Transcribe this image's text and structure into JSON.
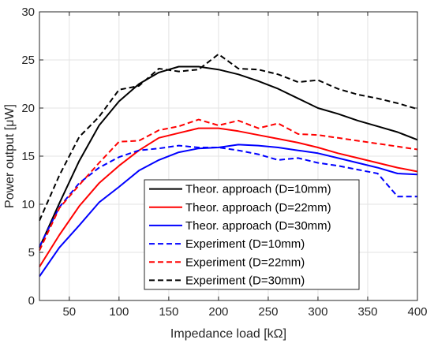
{
  "chart_data": {
    "type": "line",
    "title": "",
    "xlabel": "Impedance load [kΩ]",
    "ylabel": "Power output [μW]",
    "xlim": [
      20,
      400
    ],
    "ylim": [
      0,
      30
    ],
    "grid": true,
    "legend_position": "bottom-right",
    "xticks": [
      50,
      100,
      150,
      200,
      250,
      300,
      350,
      400
    ],
    "yticks": [
      0,
      5,
      10,
      15,
      20,
      25,
      30
    ],
    "series": [
      {
        "name": "Theor. approach (D=10mm)",
        "color": "#000000",
        "dash": "solid",
        "x": [
          20,
          40,
          60,
          80,
          100,
          120,
          140,
          160,
          180,
          200,
          220,
          240,
          260,
          280,
          300,
          320,
          340,
          360,
          380,
          400
        ],
        "y": [
          5.5,
          10.1,
          14.5,
          18.2,
          20.7,
          22.5,
          23.7,
          24.3,
          24.3,
          24.0,
          23.5,
          22.8,
          22.0,
          21.0,
          20.0,
          19.4,
          18.7,
          18.1,
          17.5,
          16.7
        ]
      },
      {
        "name": "Theor. approach (D=22mm)",
        "color": "#ff0000",
        "dash": "solid",
        "x": [
          20,
          40,
          60,
          80,
          100,
          120,
          140,
          160,
          180,
          200,
          220,
          240,
          260,
          280,
          300,
          320,
          340,
          360,
          380,
          400
        ],
        "y": [
          3.5,
          6.8,
          9.8,
          12.2,
          14.0,
          15.6,
          16.9,
          17.4,
          17.9,
          17.9,
          17.6,
          17.2,
          16.8,
          16.4,
          15.9,
          15.3,
          14.8,
          14.3,
          13.8,
          13.4
        ]
      },
      {
        "name": "Theor. approach (D=30mm)",
        "color": "#0000ff",
        "dash": "solid",
        "x": [
          20,
          40,
          60,
          80,
          100,
          120,
          140,
          160,
          180,
          200,
          220,
          240,
          260,
          280,
          300,
          320,
          340,
          360,
          380,
          400
        ],
        "y": [
          2.5,
          5.5,
          7.8,
          10.2,
          11.8,
          13.5,
          14.6,
          15.4,
          15.8,
          15.9,
          16.2,
          16.1,
          15.9,
          15.6,
          15.3,
          14.8,
          14.3,
          13.8,
          13.2,
          13.1
        ]
      },
      {
        "name": "Experiment (D=10mm)",
        "color": "#0000ff",
        "dash": "dashed",
        "x": [
          20,
          40,
          60,
          80,
          100,
          120,
          140,
          160,
          180,
          200,
          220,
          240,
          260,
          280,
          300,
          320,
          340,
          360,
          380,
          400
        ],
        "y": [
          5.6,
          9.7,
          12.2,
          13.8,
          14.9,
          15.6,
          15.8,
          16.1,
          15.9,
          15.9,
          15.6,
          15.2,
          14.6,
          14.8,
          14.3,
          14.0,
          13.6,
          13.2,
          10.8,
          10.8
        ]
      },
      {
        "name": "Experiment (D=22mm)",
        "color": "#ff0000",
        "dash": "dashed",
        "x": [
          20,
          40,
          60,
          80,
          100,
          120,
          140,
          160,
          180,
          200,
          220,
          240,
          260,
          280,
          300,
          320,
          340,
          360,
          380,
          400
        ],
        "y": [
          5.2,
          9.6,
          12.0,
          14.3,
          16.5,
          16.6,
          17.7,
          18.1,
          18.8,
          18.2,
          18.7,
          17.9,
          18.4,
          17.3,
          17.2,
          16.9,
          16.6,
          16.3,
          16.0,
          15.7
        ]
      },
      {
        "name": "Experiment (D=30mm)",
        "color": "#000000",
        "dash": "dashed",
        "x": [
          20,
          40,
          60,
          80,
          100,
          120,
          140,
          160,
          180,
          200,
          220,
          240,
          260,
          280,
          300,
          320,
          340,
          360,
          380,
          400
        ],
        "y": [
          8.3,
          13.0,
          17.0,
          19.1,
          21.9,
          22.3,
          24.1,
          23.8,
          24.0,
          25.6,
          24.1,
          24.0,
          23.5,
          22.7,
          22.9,
          22.0,
          21.4,
          21.0,
          20.5,
          19.9
        ]
      }
    ]
  }
}
